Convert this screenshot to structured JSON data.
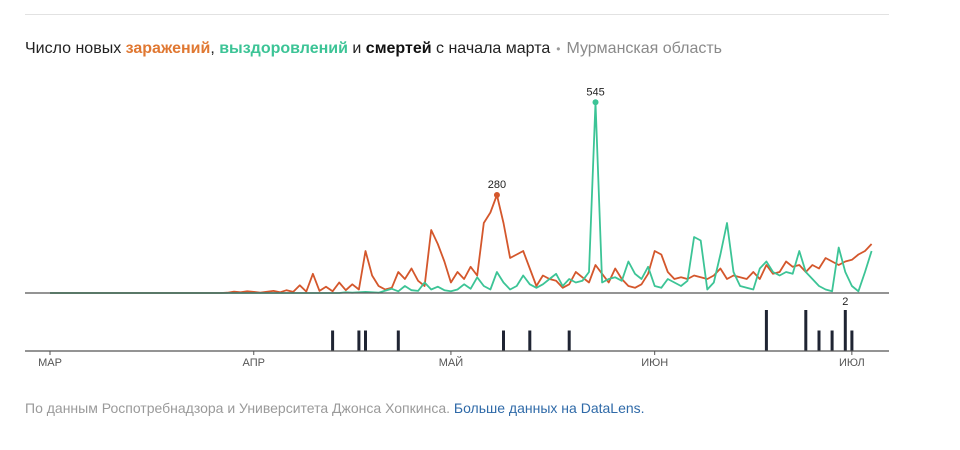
{
  "title": {
    "part1": "Число новых ",
    "infections": "заражений",
    "comma": ", ",
    "recoveries": "выздоровлений",
    "and": " и ",
    "deaths": "смертей",
    "part2": " с начала марта",
    "dot": "•",
    "region": "Мурманская область"
  },
  "footer": {
    "source": "По данным Роспотребнадзора и Университета Джонса Хопкинса.",
    "link": "Больше данных на DataLens."
  },
  "colors": {
    "infections": "#d4572c",
    "recoveries": "#3cc496",
    "deaths": "#1f2433",
    "axis": "#555555"
  },
  "chart_data": [
    {
      "type": "line",
      "x_unit": "day index since 1 March",
      "xlim": [
        0,
        124
      ],
      "ylim": [
        0,
        560
      ],
      "tick_labels": [
        "МАР",
        "АПР",
        "МАЙ",
        "ИЮН",
        "ИЮЛ"
      ],
      "tick_days": [
        0,
        31,
        61,
        92,
        122
      ],
      "series": [
        {
          "name": "заражений",
          "color": "#d4572c",
          "points": [
            [
              0,
              0
            ],
            [
              10,
              0
            ],
            [
              20,
              0
            ],
            [
              26,
              0
            ],
            [
              27,
              1
            ],
            [
              28,
              4
            ],
            [
              29,
              2
            ],
            [
              30,
              5
            ],
            [
              31,
              3
            ],
            [
              32,
              1
            ],
            [
              34,
              6
            ],
            [
              35,
              2
            ],
            [
              36,
              8
            ],
            [
              37,
              3
            ],
            [
              38,
              22
            ],
            [
              39,
              4
            ],
            [
              40,
              55
            ],
            [
              41,
              6
            ],
            [
              42,
              18
            ],
            [
              43,
              5
            ],
            [
              44,
              30
            ],
            [
              45,
              8
            ],
            [
              46,
              25
            ],
            [
              47,
              10
            ],
            [
              48,
              120
            ],
            [
              49,
              50
            ],
            [
              50,
              20
            ],
            [
              51,
              10
            ],
            [
              52,
              15
            ],
            [
              53,
              60
            ],
            [
              54,
              40
            ],
            [
              55,
              70
            ],
            [
              56,
              35
            ],
            [
              57,
              20
            ],
            [
              58,
              180
            ],
            [
              59,
              140
            ],
            [
              60,
              90
            ],
            [
              61,
              30
            ],
            [
              62,
              60
            ],
            [
              63,
              40
            ],
            [
              64,
              75
            ],
            [
              65,
              50
            ],
            [
              66,
              200
            ],
            [
              67,
              230
            ],
            [
              68,
              280
            ],
            [
              69,
              200
            ],
            [
              70,
              100
            ],
            [
              71,
              110
            ],
            [
              72,
              120
            ],
            [
              73,
              70
            ],
            [
              74,
              20
            ],
            [
              75,
              50
            ],
            [
              76,
              40
            ],
            [
              77,
              35
            ],
            [
              78,
              15
            ],
            [
              79,
              25
            ],
            [
              80,
              60
            ],
            [
              81,
              45
            ],
            [
              82,
              30
            ],
            [
              83,
              80
            ],
            [
              84,
              55
            ],
            [
              85,
              30
            ],
            [
              86,
              70
            ],
            [
              87,
              40
            ],
            [
              88,
              20
            ],
            [
              89,
              15
            ],
            [
              90,
              25
            ],
            [
              91,
              55
            ],
            [
              92,
              120
            ],
            [
              93,
              110
            ],
            [
              94,
              60
            ],
            [
              95,
              40
            ],
            [
              96,
              45
            ],
            [
              97,
              40
            ],
            [
              98,
              50
            ],
            [
              99,
              45
            ],
            [
              100,
              40
            ],
            [
              101,
              50
            ],
            [
              102,
              70
            ],
            [
              103,
              40
            ],
            [
              104,
              50
            ],
            [
              105,
              45
            ],
            [
              106,
              40
            ],
            [
              107,
              60
            ],
            [
              108,
              40
            ],
            [
              109,
              80
            ],
            [
              110,
              55
            ],
            [
              111,
              60
            ],
            [
              112,
              90
            ],
            [
              113,
              75
            ],
            [
              114,
              80
            ],
            [
              115,
              60
            ],
            [
              116,
              80
            ],
            [
              117,
              70
            ],
            [
              118,
              100
            ],
            [
              119,
              90
            ],
            [
              120,
              80
            ],
            [
              121,
              90
            ],
            [
              122,
              95
            ],
            [
              123,
              110
            ],
            [
              124,
              120
            ],
            [
              125,
              140
            ]
          ]
        },
        {
          "name": "выздоровлений",
          "color": "#3cc496",
          "points": [
            [
              0,
              0
            ],
            [
              35,
              0
            ],
            [
              40,
              0
            ],
            [
              44,
              0
            ],
            [
              45,
              2
            ],
            [
              46,
              1
            ],
            [
              48,
              3
            ],
            [
              49,
              2
            ],
            [
              50,
              1
            ],
            [
              52,
              12
            ],
            [
              53,
              5
            ],
            [
              54,
              20
            ],
            [
              55,
              8
            ],
            [
              56,
              6
            ],
            [
              57,
              30
            ],
            [
              58,
              10
            ],
            [
              59,
              18
            ],
            [
              60,
              8
            ],
            [
              61,
              5
            ],
            [
              62,
              10
            ],
            [
              63,
              25
            ],
            [
              64,
              12
            ],
            [
              65,
              45
            ],
            [
              66,
              20
            ],
            [
              67,
              10
            ],
            [
              68,
              60
            ],
            [
              69,
              30
            ],
            [
              70,
              10
            ],
            [
              71,
              20
            ],
            [
              72,
              50
            ],
            [
              73,
              25
            ],
            [
              74,
              15
            ],
            [
              75,
              25
            ],
            [
              76,
              40
            ],
            [
              77,
              55
            ],
            [
              78,
              20
            ],
            [
              79,
              40
            ],
            [
              80,
              30
            ],
            [
              81,
              35
            ],
            [
              82,
              60
            ],
            [
              83,
              545
            ],
            [
              84,
              30
            ],
            [
              85,
              40
            ],
            [
              86,
              45
            ],
            [
              87,
              35
            ],
            [
              88,
              90
            ],
            [
              89,
              55
            ],
            [
              90,
              40
            ],
            [
              91,
              75
            ],
            [
              92,
              20
            ],
            [
              93,
              15
            ],
            [
              94,
              40
            ],
            [
              95,
              30
            ],
            [
              96,
              20
            ],
            [
              97,
              35
            ],
            [
              98,
              160
            ],
            [
              99,
              150
            ],
            [
              100,
              10
            ],
            [
              101,
              30
            ],
            [
              102,
              110
            ],
            [
              103,
              200
            ],
            [
              104,
              60
            ],
            [
              105,
              20
            ],
            [
              106,
              15
            ],
            [
              107,
              10
            ],
            [
              108,
              70
            ],
            [
              109,
              90
            ],
            [
              110,
              60
            ],
            [
              111,
              50
            ],
            [
              112,
              60
            ],
            [
              113,
              55
            ],
            [
              114,
              120
            ],
            [
              115,
              60
            ],
            [
              116,
              40
            ],
            [
              117,
              20
            ],
            [
              118,
              10
            ],
            [
              119,
              5
            ],
            [
              120,
              130
            ],
            [
              121,
              60
            ],
            [
              122,
              20
            ],
            [
              123,
              5
            ],
            [
              124,
              60
            ],
            [
              125,
              120
            ]
          ]
        }
      ],
      "annotations": [
        {
          "series": "заражений",
          "x": 68,
          "value": 280,
          "label": "280"
        },
        {
          "series": "выздоровлений",
          "x": 83,
          "value": 545,
          "label": "545"
        }
      ]
    },
    {
      "type": "bar",
      "name": "смертей",
      "color": "#1f2433",
      "xlim": [
        0,
        124
      ],
      "ylim": [
        0,
        2
      ],
      "bars": [
        [
          43,
          1
        ],
        [
          47,
          1
        ],
        [
          48,
          1
        ],
        [
          53,
          1
        ],
        [
          69,
          1
        ],
        [
          73,
          1
        ],
        [
          79,
          1
        ],
        [
          109,
          2
        ],
        [
          115,
          2
        ],
        [
          117,
          1
        ],
        [
          119,
          1
        ],
        [
          121,
          2
        ],
        [
          122,
          1
        ]
      ],
      "annotations": [
        {
          "x": 121,
          "value": 2,
          "label": "2"
        }
      ]
    }
  ]
}
